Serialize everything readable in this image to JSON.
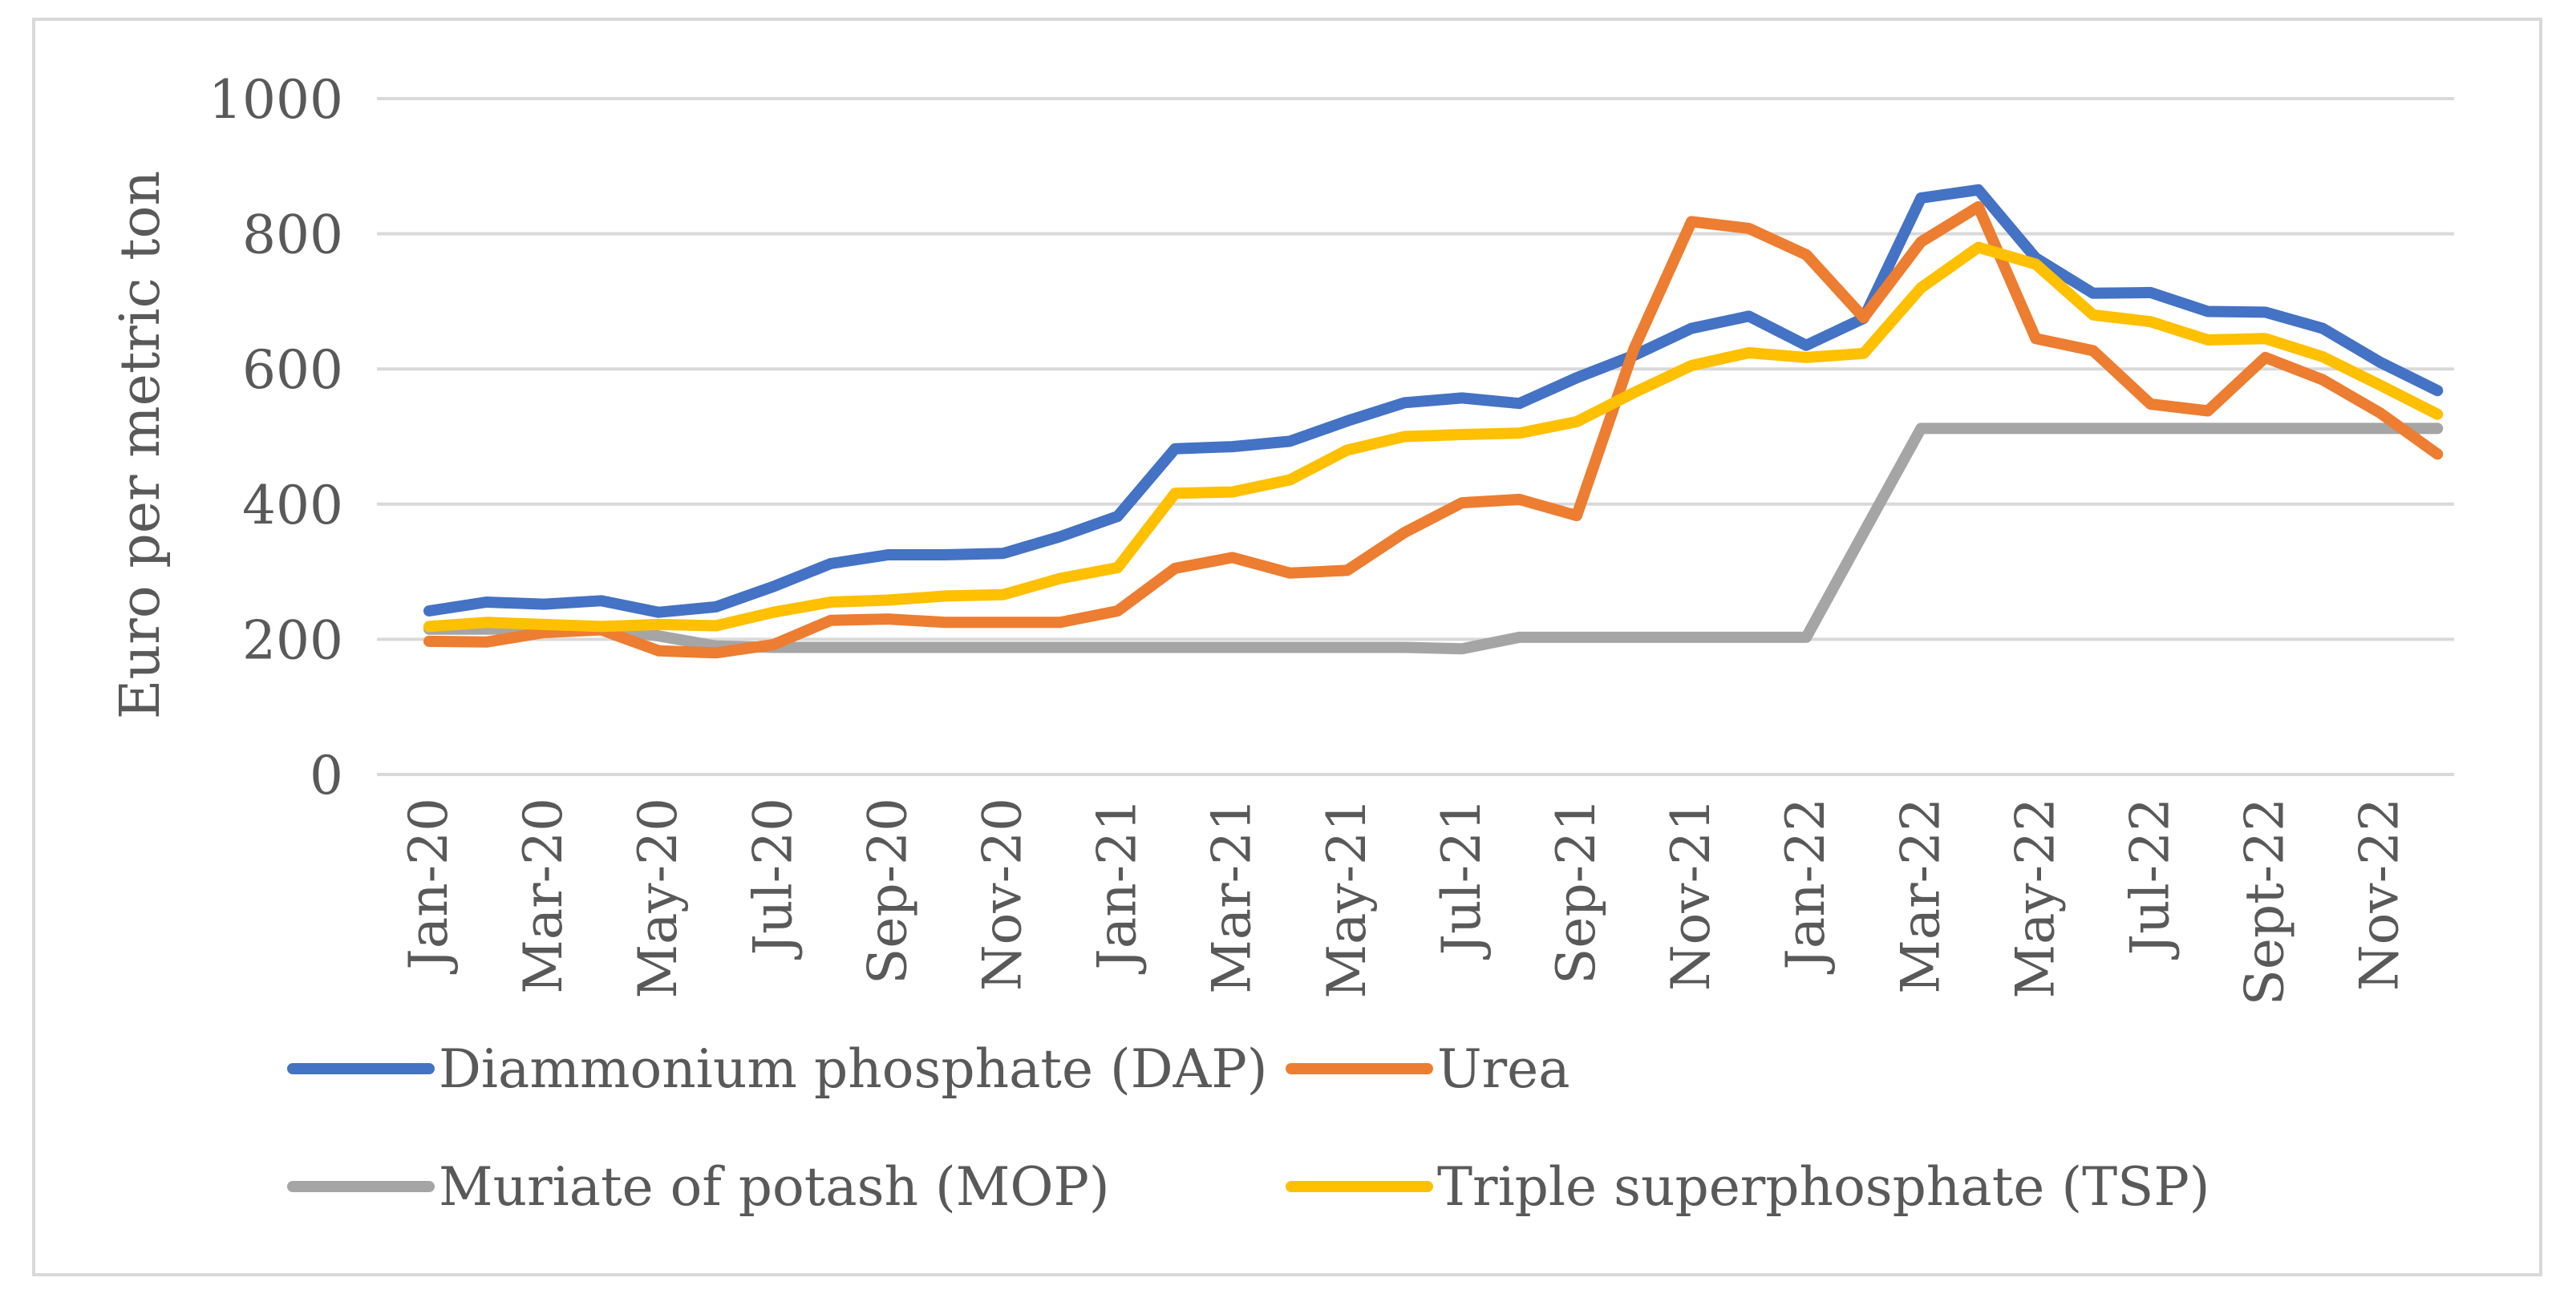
{
  "chart_data": {
    "type": "line",
    "title": "",
    "xlabel": "",
    "ylabel": "Euro per metric ton",
    "ylim": [
      0,
      1000
    ],
    "yticks": [
      0,
      200,
      400,
      600,
      800,
      1000
    ],
    "grid": true,
    "legend_position": "bottom",
    "categories": [
      "Jan-20",
      "Feb-20",
      "Mar-20",
      "Apr-20",
      "May-20",
      "Jun-20",
      "Jul-20",
      "Aug-20",
      "Sep-20",
      "Oct-20",
      "Nov-20",
      "Dec-20",
      "Jan-21",
      "Feb-21",
      "Mar-21",
      "Apr-21",
      "May-21",
      "Jun-21",
      "Jul-21",
      "Aug-21",
      "Sep-21",
      "Oct-21",
      "Nov-21",
      "Dec-21",
      "Jan-22",
      "Feb-22",
      "Mar-22",
      "Apr-22",
      "May-22",
      "Jun-22",
      "Jul-22",
      "Aug-22",
      "Sept-22",
      "Oct-22",
      "Nov-22",
      "Dec-22"
    ],
    "tick_labels": [
      "Jan-20",
      "",
      "Mar-20",
      "",
      "May-20",
      "",
      "Jul-20",
      "",
      "Sep-20",
      "",
      "Nov-20",
      "",
      "Jan-21",
      "",
      "Mar-21",
      "",
      "May-21",
      "",
      "Jul-21",
      "",
      "Sep-21",
      "",
      "Nov-21",
      "",
      "Jan-22",
      "",
      "Mar-22",
      "",
      "May-22",
      "",
      "Jul-22",
      "",
      "Sept-22",
      "",
      "Nov-22",
      ""
    ],
    "series": [
      {
        "name": "Diammonium phosphate (DAP)",
        "color": "#4472c4",
        "values": [
          242,
          255,
          252,
          257,
          240,
          248,
          278,
          312,
          325,
          325,
          327,
          352,
          382,
          482,
          485,
          493,
          523,
          550,
          557,
          549,
          587,
          620,
          660,
          678,
          635,
          675,
          853,
          865,
          764,
          712,
          713,
          685,
          684,
          660,
          610,
          568
        ]
      },
      {
        "name": "Urea",
        "color": "#ed7d31",
        "values": [
          197,
          196,
          210,
          214,
          183,
          180,
          192,
          228,
          230,
          225,
          225,
          225,
          242,
          305,
          321,
          298,
          302,
          358,
          402,
          407,
          383,
          630,
          818,
          808,
          769,
          676,
          788,
          840,
          645,
          627,
          548,
          538,
          617,
          584,
          535,
          474
        ]
      },
      {
        "name": "Muriate of potash (MOP)",
        "color": "#a5a5a5",
        "values": [
          215,
          215,
          216,
          216,
          205,
          190,
          188,
          188,
          188,
          188,
          188,
          188,
          188,
          188,
          188,
          188,
          188,
          188,
          186,
          203,
          203,
          203,
          203,
          203,
          203,
          358,
          512,
          512,
          512,
          512,
          512,
          512,
          512,
          512,
          512,
          512
        ]
      },
      {
        "name": "Triple superphosphate (TSP)",
        "color": "#ffc000",
        "values": [
          219,
          225,
          222,
          219,
          222,
          220,
          240,
          255,
          258,
          264,
          266,
          290,
          306,
          416,
          418,
          436,
          480,
          500,
          503,
          505,
          522,
          565,
          605,
          624,
          617,
          623,
          720,
          780,
          755,
          680,
          670,
          643,
          645,
          618,
          576,
          533
        ]
      }
    ]
  }
}
